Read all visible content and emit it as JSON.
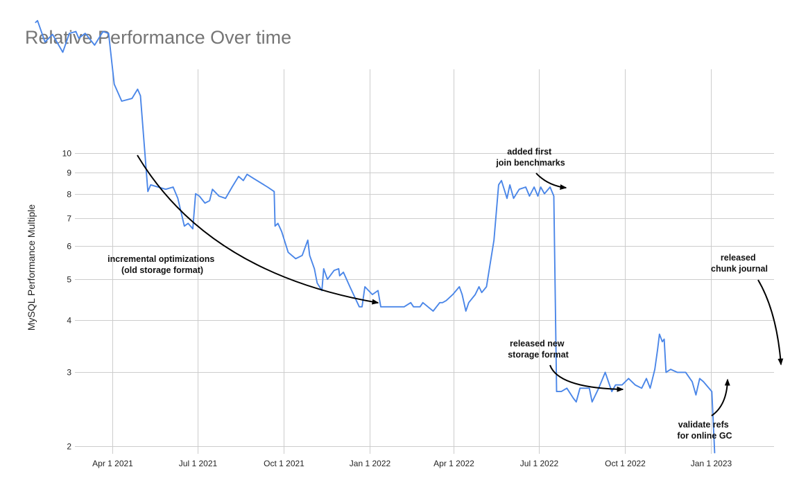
{
  "chart_data": {
    "type": "line",
    "title": "Relative Performance Over time",
    "xlabel": "",
    "ylabel": "MySQL Performance Multiple",
    "y_scale": "log",
    "ylim": [
      1.93,
      21
    ],
    "xlim": [
      "2021-01-09",
      "2023-03-31"
    ],
    "grid": true,
    "x_ticks": [
      {
        "date": "2021-04-01",
        "label": "Apr 1 2021"
      },
      {
        "date": "2021-07-01",
        "label": "Jul 1 2021"
      },
      {
        "date": "2021-10-01",
        "label": "Oct 1 2021"
      },
      {
        "date": "2022-01-01",
        "label": "Jan 1 2022"
      },
      {
        "date": "2022-04-01",
        "label": "Apr 1 2022"
      },
      {
        "date": "2022-07-01",
        "label": "Jul 1 2022"
      },
      {
        "date": "2022-10-01",
        "label": "Oct 1 2022"
      },
      {
        "date": "2023-01-01",
        "label": "Jan 1 2023"
      }
    ],
    "y_ticks": [
      2,
      3,
      4,
      5,
      6,
      7,
      8,
      9,
      10
    ],
    "series": [
      {
        "color": "#4a86e8",
        "points": [
          [
            "2021-01-09",
            20.5
          ],
          [
            "2021-01-11",
            20.7
          ],
          [
            "2021-01-19",
            18.4
          ],
          [
            "2021-01-27",
            19.2
          ],
          [
            "2021-02-07",
            17.4
          ],
          [
            "2021-02-14",
            19.3
          ],
          [
            "2021-02-21",
            19.5
          ],
          [
            "2021-02-24",
            18.8
          ],
          [
            "2021-03-03",
            19.3
          ],
          [
            "2021-03-13",
            18.1
          ],
          [
            "2021-03-22",
            19.5
          ],
          [
            "2021-03-28",
            19.3
          ],
          [
            "2021-04-03",
            14.6
          ],
          [
            "2021-04-11",
            13.3
          ],
          [
            "2021-04-22",
            13.5
          ],
          [
            "2021-04-28",
            14.2
          ],
          [
            "2021-05-01",
            13.7
          ],
          [
            "2021-05-09",
            8.1
          ],
          [
            "2021-05-12",
            8.4
          ],
          [
            "2021-05-28",
            8.2
          ],
          [
            "2021-06-05",
            8.3
          ],
          [
            "2021-06-10",
            7.8
          ],
          [
            "2021-06-17",
            6.7
          ],
          [
            "2021-06-21",
            6.8
          ],
          [
            "2021-06-26",
            6.6
          ],
          [
            "2021-06-29",
            8.0
          ],
          [
            "2021-07-03",
            7.9
          ],
          [
            "2021-07-09",
            7.6
          ],
          [
            "2021-07-14",
            7.7
          ],
          [
            "2021-07-17",
            8.2
          ],
          [
            "2021-07-24",
            7.9
          ],
          [
            "2021-07-31",
            7.8
          ],
          [
            "2021-08-07",
            8.3
          ],
          [
            "2021-08-14",
            8.8
          ],
          [
            "2021-08-19",
            8.6
          ],
          [
            "2021-08-23",
            8.9
          ],
          [
            "2021-08-30",
            8.7
          ],
          [
            "2021-09-14",
            8.3
          ],
          [
            "2021-09-21",
            8.1
          ],
          [
            "2021-09-22",
            6.7
          ],
          [
            "2021-09-25",
            6.8
          ],
          [
            "2021-09-29",
            6.5
          ],
          [
            "2021-10-06",
            5.8
          ],
          [
            "2021-10-14",
            5.6
          ],
          [
            "2021-10-21",
            5.7
          ],
          [
            "2021-10-27",
            6.2
          ],
          [
            "2021-10-29",
            5.7
          ],
          [
            "2021-11-03",
            5.3
          ],
          [
            "2021-11-06",
            4.9
          ],
          [
            "2021-11-11",
            4.7
          ],
          [
            "2021-11-13",
            5.3
          ],
          [
            "2021-11-17",
            5.0
          ],
          [
            "2021-11-24",
            5.25
          ],
          [
            "2021-11-29",
            5.3
          ],
          [
            "2021-11-30",
            5.1
          ],
          [
            "2021-12-04",
            5.2
          ],
          [
            "2021-12-11",
            4.8
          ],
          [
            "2021-12-21",
            4.3
          ],
          [
            "2021-12-24",
            4.3
          ],
          [
            "2021-12-27",
            4.8
          ],
          [
            "2022-01-04",
            4.6
          ],
          [
            "2022-01-10",
            4.7
          ],
          [
            "2022-01-13",
            4.3
          ],
          [
            "2022-01-27",
            4.3
          ],
          [
            "2022-02-03",
            4.3
          ],
          [
            "2022-02-07",
            4.3
          ],
          [
            "2022-02-14",
            4.4
          ],
          [
            "2022-02-17",
            4.3
          ],
          [
            "2022-02-24",
            4.3
          ],
          [
            "2022-02-27",
            4.4
          ],
          [
            "2022-03-10",
            4.2
          ],
          [
            "2022-03-17",
            4.4
          ],
          [
            "2022-03-20",
            4.4
          ],
          [
            "2022-03-24",
            4.45
          ],
          [
            "2022-03-31",
            4.6
          ],
          [
            "2022-04-07",
            4.8
          ],
          [
            "2022-04-10",
            4.6
          ],
          [
            "2022-04-14",
            4.2
          ],
          [
            "2022-04-17",
            4.4
          ],
          [
            "2022-04-24",
            4.6
          ],
          [
            "2022-04-28",
            4.8
          ],
          [
            "2022-05-01",
            4.65
          ],
          [
            "2022-05-06",
            4.8
          ],
          [
            "2022-05-14",
            6.2
          ],
          [
            "2022-05-19",
            8.4
          ],
          [
            "2022-05-22",
            8.6
          ],
          [
            "2022-05-28",
            7.8
          ],
          [
            "2022-05-31",
            8.4
          ],
          [
            "2022-06-04",
            7.8
          ],
          [
            "2022-06-10",
            8.2
          ],
          [
            "2022-06-17",
            8.3
          ],
          [
            "2022-06-21",
            7.9
          ],
          [
            "2022-06-26",
            8.3
          ],
          [
            "2022-06-30",
            7.9
          ],
          [
            "2022-07-03",
            8.3
          ],
          [
            "2022-07-07",
            8.0
          ],
          [
            "2022-07-13",
            8.3
          ],
          [
            "2022-07-17",
            7.9
          ],
          [
            "2022-07-20",
            2.7
          ],
          [
            "2022-07-25",
            2.7
          ],
          [
            "2022-07-31",
            2.75
          ],
          [
            "2022-08-07",
            2.6
          ],
          [
            "2022-08-10",
            2.55
          ],
          [
            "2022-08-14",
            2.75
          ],
          [
            "2022-08-24",
            2.75
          ],
          [
            "2022-08-27",
            2.55
          ],
          [
            "2022-09-03",
            2.75
          ],
          [
            "2022-09-10",
            3.0
          ],
          [
            "2022-09-17",
            2.7
          ],
          [
            "2022-09-21",
            2.8
          ],
          [
            "2022-09-28",
            2.8
          ],
          [
            "2022-10-05",
            2.9
          ],
          [
            "2022-10-12",
            2.8
          ],
          [
            "2022-10-19",
            2.75
          ],
          [
            "2022-10-24",
            2.9
          ],
          [
            "2022-10-28",
            2.75
          ],
          [
            "2022-11-02",
            3.05
          ],
          [
            "2022-11-05",
            3.4
          ],
          [
            "2022-11-07",
            3.7
          ],
          [
            "2022-11-10",
            3.55
          ],
          [
            "2022-11-12",
            3.6
          ],
          [
            "2022-11-14",
            3.0
          ],
          [
            "2022-11-19",
            3.05
          ],
          [
            "2022-11-26",
            3.0
          ],
          [
            "2022-12-05",
            3.0
          ],
          [
            "2022-12-12",
            2.85
          ],
          [
            "2022-12-16",
            2.65
          ],
          [
            "2022-12-20",
            2.9
          ],
          [
            "2022-12-24",
            2.85
          ],
          [
            "2023-01-02",
            2.7
          ],
          [
            "2023-01-05",
            1.93
          ]
        ]
      }
    ],
    "annotations": [
      {
        "lines": [
          "incremental optimizations",
          "(old storage format)"
        ]
      },
      {
        "lines": [
          "added first",
          "join benchmarks"
        ]
      },
      {
        "lines": [
          "released new",
          "storage format"
        ]
      },
      {
        "lines": [
          "released",
          "chunk journal"
        ]
      },
      {
        "lines": [
          "validate refs",
          "for online GC"
        ]
      }
    ]
  }
}
